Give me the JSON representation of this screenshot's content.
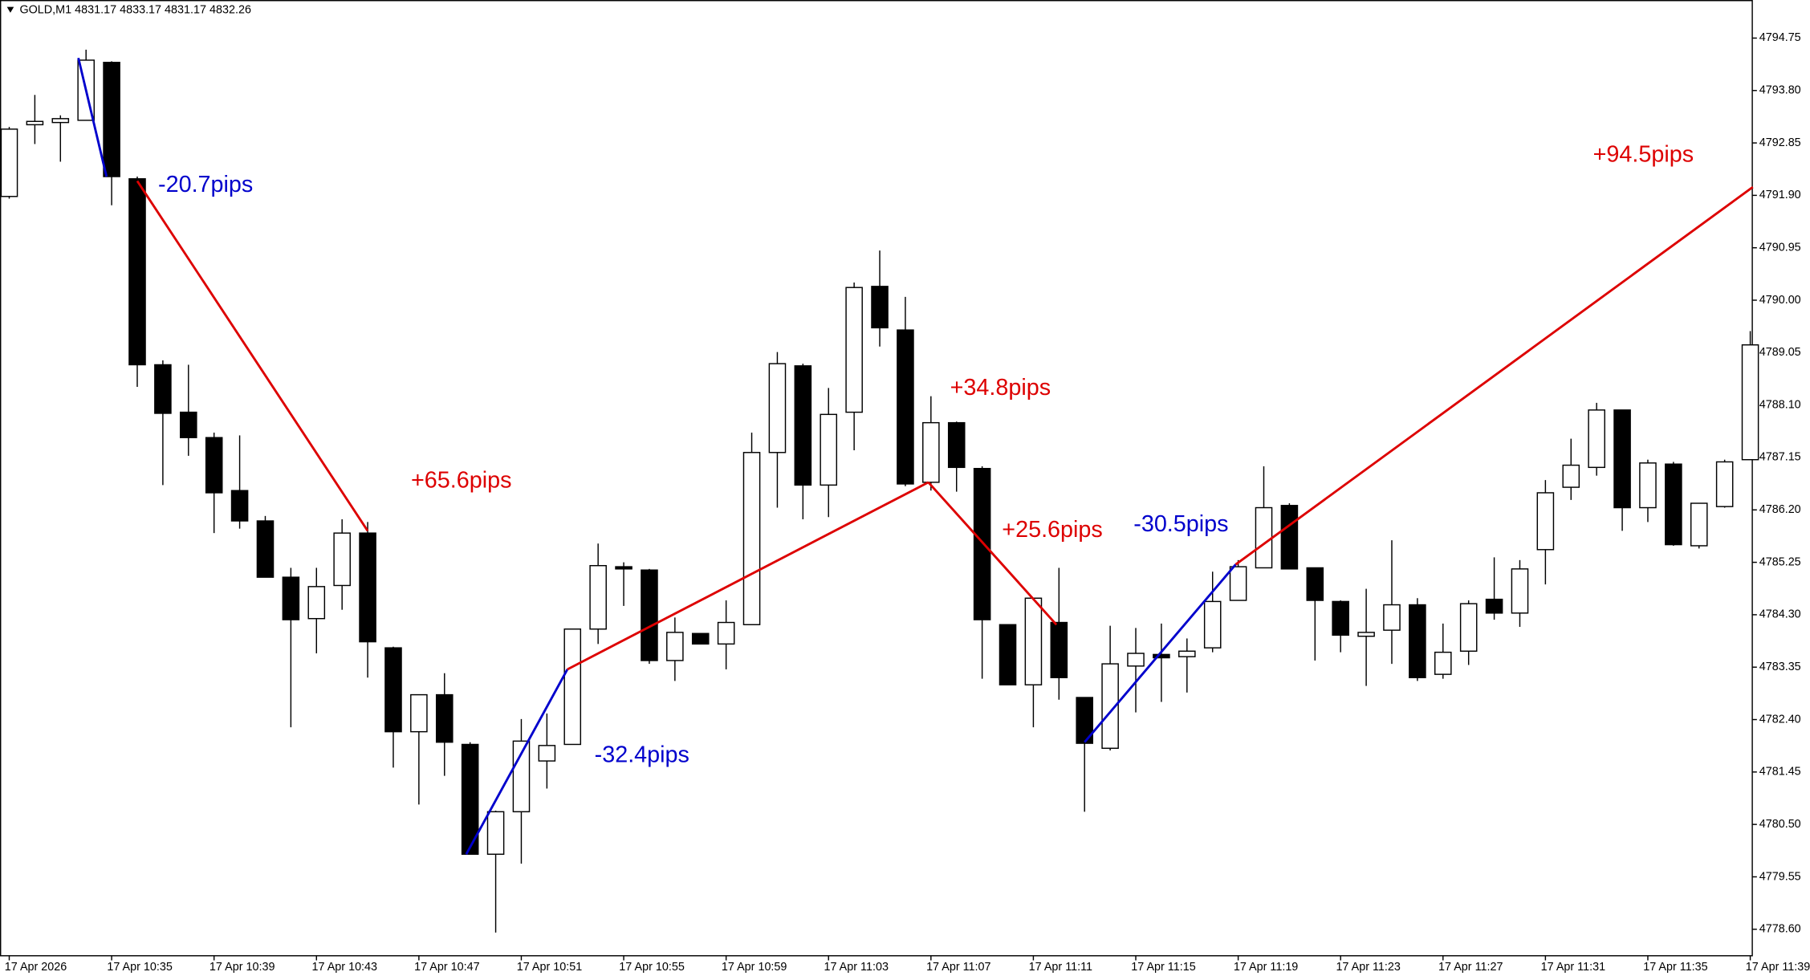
{
  "chart_data": {
    "type": "candlestick",
    "title": "GOLD,M1  4831.17 4833.17 4831.17 4832.26",
    "categories": [
      "17 Apr 2026",
      null,
      null,
      null,
      "17 Apr 10:35",
      null,
      null,
      null,
      "17 Apr 10:39",
      null,
      null,
      null,
      "17 Apr 10:43",
      null,
      null,
      null,
      "17 Apr 10:47",
      null,
      null,
      null,
      "17 Apr 10:51",
      null,
      null,
      null,
      "17 Apr 10:55",
      null,
      null,
      null,
      "17 Apr 10:59",
      null,
      null,
      null,
      "17 Apr 11:03",
      null,
      null,
      null,
      "17 Apr 11:07",
      null,
      null,
      null,
      "17 Apr 11:11",
      null,
      null,
      null,
      "17 Apr 11:15",
      null,
      null,
      null,
      "17 Apr 11:19",
      null,
      null,
      null,
      "17 Apr 11:23",
      null,
      null,
      null,
      "17 Apr 11:27",
      null,
      null,
      null,
      "17 Apr 11:31",
      null,
      null,
      null,
      "17 Apr 11:35",
      null,
      null,
      null,
      "17 Apr 11:39"
    ],
    "open": [
      4791.88,
      4793.18,
      4793.22,
      4793.26,
      4794.31,
      4792.2,
      4788.83,
      4787.97,
      4787.51,
      4786.55,
      4786.0,
      4784.98,
      4784.23,
      4784.83,
      4785.78,
      4783.7,
      4782.18,
      4782.85,
      4781.95,
      4779.96,
      4780.73,
      4781.65,
      4781.95,
      4784.04,
      4785.17,
      4785.11,
      4783.47,
      4783.96,
      4783.77,
      4784.12,
      4787.24,
      4788.81,
      4786.65,
      4787.97,
      4790.25,
      4789.46,
      4786.7,
      4787.78,
      4786.95,
      4784.12,
      4783.03,
      4784.16,
      4782.8,
      4781.88,
      4783.37,
      4783.58,
      4783.54,
      4783.7,
      4784.56,
      4785.15,
      4786.28,
      4785.15,
      4784.54,
      4783.91,
      4784.02,
      4784.48,
      4783.22,
      4783.64,
      4784.58,
      4784.33,
      4785.48,
      4786.61,
      4786.97,
      4788.01,
      4786.24,
      4787.03,
      4785.55,
      4786.26,
      4787.11
    ],
    "high": [
      4793.14,
      4793.72,
      4793.35,
      4794.54,
      4794.33,
      4792.24,
      4788.91,
      4788.83,
      4787.6,
      4787.55,
      4786.09,
      4785.15,
      4785.15,
      4786.03,
      4785.98,
      4783.72,
      4782.85,
      4783.24,
      4781.99,
      4780.75,
      4782.41,
      4782.51,
      4784.04,
      4785.59,
      4785.25,
      4785.13,
      4784.25,
      4783.96,
      4784.56,
      4787.6,
      4789.06,
      4788.85,
      4788.41,
      4790.32,
      4790.9,
      4790.06,
      4788.26,
      4787.8,
      4786.99,
      4784.12,
      4784.6,
      4785.15,
      4782.8,
      4784.1,
      4784.06,
      4784.14,
      4783.87,
      4785.08,
      4785.29,
      4786.99,
      4786.32,
      4785.15,
      4784.56,
      4784.77,
      4785.65,
      4784.6,
      4784.14,
      4784.56,
      4785.34,
      4785.29,
      4786.74,
      4787.49,
      4788.14,
      4788.01,
      4787.11,
      4787.07,
      4786.32,
      4787.11,
      4789.44
    ],
    "low": [
      4791.84,
      4792.83,
      4792.51,
      4793.26,
      4791.72,
      4788.43,
      4786.65,
      4787.18,
      4785.78,
      4785.86,
      4784.98,
      4782.26,
      4783.6,
      4784.39,
      4783.16,
      4781.53,
      4780.86,
      4781.38,
      4779.96,
      4778.54,
      4779.79,
      4781.15,
      4781.95,
      4783.77,
      4784.46,
      4783.41,
      4783.1,
      4783.77,
      4783.31,
      4784.12,
      4786.24,
      4786.03,
      4786.07,
      4787.28,
      4789.16,
      4786.63,
      4786.55,
      4786.53,
      4783.14,
      4783.03,
      4782.26,
      4782.76,
      4780.73,
      4781.84,
      4782.53,
      4782.72,
      4782.89,
      4783.62,
      4784.56,
      4785.15,
      4785.13,
      4783.47,
      4783.62,
      4783.01,
      4783.41,
      4783.1,
      4783.14,
      4783.39,
      4784.21,
      4784.08,
      4784.85,
      4786.38,
      4786.82,
      4785.82,
      4785.98,
      4785.55,
      4785.5,
      4786.24,
      4787.11
    ],
    "close": [
      4793.1,
      4793.24,
      4793.29,
      4794.35,
      4792.24,
      4788.83,
      4787.95,
      4787.51,
      4786.51,
      4786.0,
      4784.98,
      4784.21,
      4784.81,
      4785.78,
      4783.81,
      4782.18,
      4782.85,
      4781.99,
      4779.96,
      4780.73,
      4782.01,
      4781.93,
      4784.04,
      4785.19,
      4785.13,
      4783.47,
      4783.98,
      4783.77,
      4784.16,
      4787.24,
      4788.85,
      4786.65,
      4787.93,
      4790.23,
      4789.5,
      4786.67,
      4787.78,
      4786.97,
      4784.21,
      4783.03,
      4784.6,
      4783.16,
      4781.97,
      4783.41,
      4783.6,
      4783.52,
      4783.64,
      4784.54,
      4785.17,
      4786.24,
      4785.13,
      4784.56,
      4783.93,
      4783.98,
      4784.48,
      4783.16,
      4783.62,
      4784.5,
      4784.33,
      4785.13,
      4786.51,
      4787.01,
      4788.01,
      4786.24,
      4787.05,
      4785.57,
      4786.32,
      4787.07,
      4789.19
    ],
    "up_color": "#ffffff",
    "down_color": "#000000",
    "outline_color": "#000000",
    "ylim": [
      4778.12,
      4795.44
    ],
    "yticks": [
      4794.75,
      {
        "value": 4793.8,
        "label": "4793.80"
      },
      4792.85,
      {
        "value": 4791.9,
        "label": "4791.90"
      },
      4790.95,
      {
        "value": 4790,
        "label": "4790.00"
      },
      4789.05,
      {
        "value": 4788.1,
        "label": "4788.10"
      },
      4787.15,
      {
        "value": 4786.2,
        "label": "4786.20"
      },
      4785.25,
      {
        "value": 4784.3,
        "label": "4784.30"
      },
      4783.35,
      {
        "value": 4782.4,
        "label": "4782.40"
      },
      4781.45,
      {
        "value": 4780.5,
        "label": "4780.50"
      },
      4779.55,
      {
        "value": 4778.6,
        "label": "4778.60"
      }
    ],
    "lines": [
      {
        "color": "#0000cc",
        "from": {
          "x": 2.7,
          "y": 4794.39
        },
        "to": {
          "x": 3.8,
          "y": 4792.24
        }
      },
      {
        "color": "#dd0000",
        "from": {
          "x": 5,
          "y": 4792.16
        },
        "to": {
          "x": 14,
          "y": 4785.82
        }
      },
      {
        "color": "#0000cc",
        "from": {
          "x": 17.85,
          "y": 4779.96
        },
        "to": {
          "x": 21.8,
          "y": 4783.31
        }
      },
      {
        "color": "#dd0000",
        "from": {
          "x": 21.8,
          "y": 4783.31
        },
        "to": {
          "x": 35.9,
          "y": 4786.7
        }
      },
      {
        "color": "#dd0000",
        "from": {
          "x": 35.9,
          "y": 4786.7
        },
        "to": {
          "x": 40.9,
          "y": 4784.12
        }
      },
      {
        "color": "#0000cc",
        "from": {
          "x": 42,
          "y": 4781.99
        },
        "to": {
          "x": 47.9,
          "y": 4785.21
        }
      },
      {
        "color": "#dd0000",
        "from": {
          "x": 47.9,
          "y": 4785.21
        },
        "to": {
          "x": 68.1,
          "y": 4792.05
        }
      }
    ],
    "annotations": [
      {
        "text": "-20.7pips",
        "color": "#0000cc"
      },
      {
        "text": "+65.6pips",
        "color": "#dd0000"
      },
      {
        "text": "-32.4pips",
        "color": "#0000cc"
      },
      {
        "text": "+34.8pips",
        "color": "#dd0000"
      },
      {
        "text": "+25.6pips",
        "color": "#dd0000"
      },
      {
        "text": "-30.5pips",
        "color": "#0000cc"
      },
      {
        "text": "+94.5pips",
        "color": "#dd0000"
      }
    ]
  }
}
